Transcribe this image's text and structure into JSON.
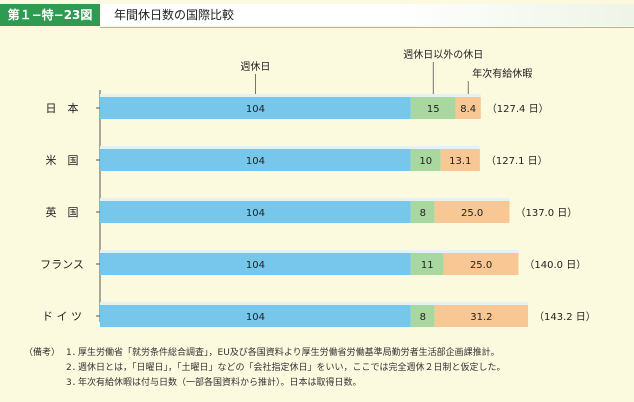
{
  "figure_label": "第１−特−23図",
  "figure_title": "年間休日数の国際比較",
  "colors": {
    "weekly_holiday": "#76c7eb",
    "other_holiday": "#a8d8a0",
    "paid_leave": "#f8c793",
    "header_green": "#2f9a52"
  },
  "chart_data": {
    "type": "bar",
    "orientation": "horizontal",
    "stacked": true,
    "categories": [
      "日　本",
      "米　国",
      "英　国",
      "フランス",
      "ド イ ツ"
    ],
    "series": [
      {
        "name": "週休日",
        "values": [
          104,
          104,
          104,
          104,
          104
        ]
      },
      {
        "name": "週休日以外の休日",
        "values": [
          15,
          10,
          8,
          11,
          8
        ]
      },
      {
        "name": "年次有給休暇",
        "values": [
          8.4,
          13.1,
          25.0,
          25.0,
          31.2
        ]
      }
    ],
    "value_labels": [
      [
        "104",
        "15",
        "8.4"
      ],
      [
        "104",
        "10",
        "13.1"
      ],
      [
        "104",
        "8",
        "25.0"
      ],
      [
        "104",
        "11",
        "25.0"
      ],
      [
        "104",
        "8",
        "31.2"
      ]
    ],
    "totals": [
      "（127.4 日）",
      "（127.1 日）",
      "（137.0 日）",
      "（140.0 日）",
      "（143.2 日）"
    ],
    "title": "",
    "xlabel": "",
    "ylabel": "",
    "xlim": [
      0,
      143.2
    ],
    "grid": false,
    "legend": "labels above top bar"
  },
  "notes": {
    "head": "（備考）",
    "items": [
      {
        "num": "1．",
        "text": "厚生労働省「就労条件総合調査」，EU及び各国資料より厚生労働省労働基準局勤労者生活部企画課推計。"
      },
      {
        "num": "2．",
        "text": "週休日とは，「日曜日」，「土曜日」などの「会社指定休日」をいい，ここでは完全週休２日制と仮定した。"
      },
      {
        "num": "3．",
        "text": "年次有給休暇は付与日数（一部各国資料から推計）。日本は取得日数。"
      }
    ]
  }
}
